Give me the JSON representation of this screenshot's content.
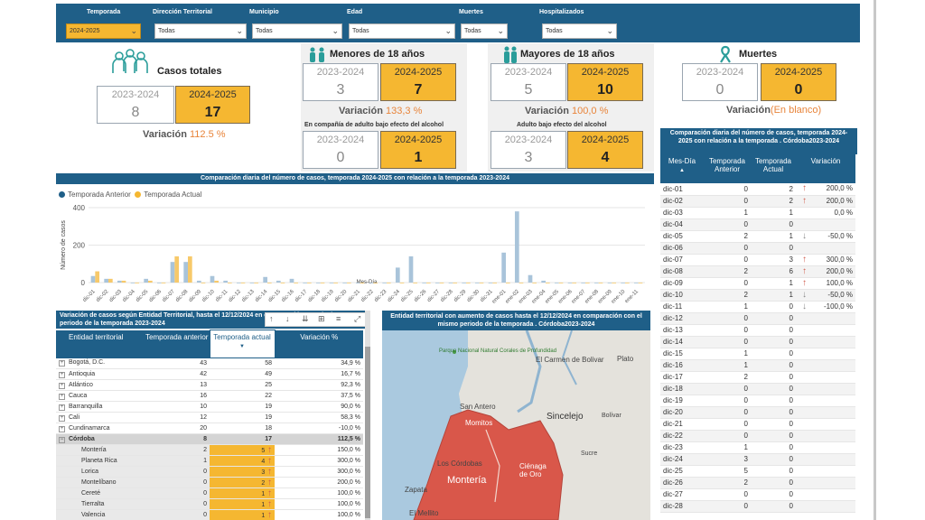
{
  "filters": [
    {
      "label": "Temporada",
      "value": "2024-2025"
    },
    {
      "label": "Dirección Territorial",
      "value": "Todas"
    },
    {
      "label": "Municipio",
      "value": "Todas"
    },
    {
      "label": "Edad",
      "value": "Todas"
    },
    {
      "label": "Muertes",
      "value": "Todas"
    },
    {
      "label": "Hospitalizados",
      "value": "Todas"
    }
  ],
  "kpi": {
    "casos": {
      "title": "Casos totales",
      "prev_label": "2023-2024",
      "prev": "8",
      "cur_label": "2024-2025",
      "cur": "17",
      "var_label": "Variación",
      "var_value": "112.5 %"
    },
    "menores": {
      "title": "Menores de 18 años",
      "prev_label": "2023-2024",
      "prev": "3",
      "cur_label": "2024-2025",
      "cur": "7",
      "var_label": "Variación",
      "var_value": "133,3 %",
      "sub_title": "En compañía de adulto bajo efecto del alcohol",
      "sub_prev_label": "2023-2024",
      "sub_prev": "0",
      "sub_cur_label": "2024-2025",
      "sub_cur": "1"
    },
    "mayores": {
      "title": "Mayores de 18 años",
      "prev_label": "2023-2024",
      "prev": "5",
      "cur_label": "2024-2025",
      "cur": "10",
      "var_label": "Variación",
      "var_value": "100,0 %",
      "sub_title": "Adulto bajo efecto del alcohol",
      "sub_prev_label": "2023-2024",
      "sub_prev": "3",
      "sub_cur_label": "2024-2025",
      "sub_cur": "4"
    },
    "muertes": {
      "title": "Muertes",
      "prev_label": "2023-2024",
      "prev": "0",
      "cur_label": "2024-2025",
      "cur": "0",
      "var_label": "Variación",
      "var_value": "(En blanco)"
    }
  },
  "chart_title": "Comparación diaria del número de casos, temporada 2024-2025 con relación a la temporada 2023-2024",
  "chart_data": {
    "type": "bar",
    "xlabel": "Mes-Día",
    "ylabel": "Número de casos",
    "ylim": [
      0,
      400
    ],
    "yticks": [
      "0",
      "200",
      "400"
    ],
    "series_colors": [
      "#a9c4da",
      "#f7c96a"
    ],
    "categories": [
      "dic-01",
      "dic-02",
      "dic-03",
      "dic-04",
      "dic-05",
      "dic-06",
      "dic-07",
      "dic-08",
      "dic-09",
      "dic-10",
      "dic-11",
      "dic-12",
      "dic-13",
      "dic-14",
      "dic-15",
      "dic-16",
      "dic-17",
      "dic-18",
      "dic-19",
      "dic-20",
      "dic-21",
      "dic-22",
      "dic-23",
      "dic-24",
      "dic-25",
      "dic-26",
      "dic-27",
      "dic-28",
      "dic-29",
      "dic-30",
      "dic-31",
      "ene-01",
      "ene-02",
      "ene-03",
      "ene-04",
      "ene-05",
      "ene-06",
      "ene-07",
      "ene-08",
      "ene-09",
      "ene-10",
      "ene-11"
    ],
    "series": [
      {
        "name": "Temporada Anterior",
        "values": [
          35,
          20,
          10,
          0,
          20,
          0,
          110,
          110,
          10,
          35,
          10,
          0,
          0,
          30,
          10,
          20,
          0,
          0,
          0,
          0,
          0,
          0,
          0,
          80,
          140,
          0,
          0,
          0,
          0,
          0,
          0,
          160,
          380,
          40,
          10,
          0,
          0,
          0,
          0,
          0,
          0,
          0
        ]
      },
      {
        "name": "Temporada Actual",
        "values": [
          60,
          20,
          10,
          0,
          10,
          0,
          140,
          140,
          0,
          10,
          0,
          0,
          0,
          0,
          0,
          0,
          0,
          0,
          0,
          0,
          0,
          0,
          0,
          0,
          0,
          0,
          0,
          0,
          0,
          0,
          0,
          0,
          0,
          0,
          0,
          0,
          0,
          0,
          0,
          0,
          0,
          0
        ]
      }
    ]
  },
  "territorial": {
    "title": "Variación de casos según Entidad Territorial, hasta el 12/12/2024 en comparación con el mismo periodo de la temporada 2023-2024",
    "headers": [
      "Entidad territorial",
      "Temporada anterior",
      "Temporada actual",
      "Variación %"
    ],
    "rows": [
      {
        "name": "Bogotá, D.C.",
        "prev": "43",
        "cur": "58",
        "var": "34,9 %",
        "level": 0,
        "arrow": ""
      },
      {
        "name": "Antioquia",
        "prev": "42",
        "cur": "49",
        "var": "16,7 %",
        "level": 0,
        "arrow": ""
      },
      {
        "name": "Atlántico",
        "prev": "13",
        "cur": "25",
        "var": "92,3 %",
        "level": 0,
        "arrow": ""
      },
      {
        "name": "Cauca",
        "prev": "16",
        "cur": "22",
        "var": "37,5 %",
        "level": 0,
        "arrow": ""
      },
      {
        "name": "Barranquilla",
        "prev": "10",
        "cur": "19",
        "var": "90,0 %",
        "level": 0,
        "arrow": ""
      },
      {
        "name": "Cali",
        "prev": "12",
        "cur": "19",
        "var": "58,3 %",
        "level": 0,
        "arrow": ""
      },
      {
        "name": "Cundinamarca",
        "prev": "20",
        "cur": "18",
        "var": "-10,0 %",
        "level": 0,
        "arrow": ""
      },
      {
        "name": "Córdoba",
        "prev": "8",
        "cur": "17",
        "var": "112,5 %",
        "level": 0,
        "arrow": "",
        "expanded": true
      },
      {
        "name": "Montería",
        "prev": "2",
        "cur": "5",
        "var": "150,0 %",
        "level": 1,
        "arrow": "up"
      },
      {
        "name": "Planeta Rica",
        "prev": "1",
        "cur": "4",
        "var": "300,0 %",
        "level": 1,
        "arrow": "up"
      },
      {
        "name": "Lorica",
        "prev": "0",
        "cur": "3",
        "var": "300,0 %",
        "level": 1,
        "arrow": "up"
      },
      {
        "name": "Montelíbano",
        "prev": "0",
        "cur": "2",
        "var": "200,0 %",
        "level": 1,
        "arrow": "up"
      },
      {
        "name": "Cereté",
        "prev": "0",
        "cur": "1",
        "var": "100,0 %",
        "level": 1,
        "arrow": "up"
      },
      {
        "name": "Tierralta",
        "prev": "0",
        "cur": "1",
        "var": "100,0 %",
        "level": 1,
        "arrow": "up"
      },
      {
        "name": "Valencia",
        "prev": "0",
        "cur": "1",
        "var": "100,0 %",
        "level": 1,
        "arrow": "up"
      }
    ]
  },
  "map": {
    "title": "Entidad territorial con aumento de casos hasta el 12/12/2024 en comparación con el mismo periodo de la temporada . Córdoba2023-2024",
    "labels": [
      "Parque Nacional Natural Corales de Profundidad",
      "El Carmen de Bolivar",
      "Plato",
      "San Antero",
      "Momitos",
      "Sincelejo",
      "Bolívar",
      "Los Córdobas",
      "Ciénaga de Oro",
      "Montería",
      "Sucre",
      "Zapata",
      "El Mellito"
    ]
  },
  "daily_table": {
    "title": "Comparación diaria del número de casos, temporada 2024-2025 con relación a la temporada . Córdoba2023-2024",
    "headers": [
      "Mes-Día",
      "Temporada Anterior",
      "Temporada Actual",
      "Variación"
    ],
    "rows": [
      {
        "d": "dic-01",
        "p": "0",
        "c": "2",
        "v": "200,0 %",
        "a": "up"
      },
      {
        "d": "dic-02",
        "p": "0",
        "c": "2",
        "v": "200,0 %",
        "a": "up"
      },
      {
        "d": "dic-03",
        "p": "1",
        "c": "1",
        "v": "0,0 %",
        "a": ""
      },
      {
        "d": "dic-04",
        "p": "0",
        "c": "0",
        "v": "",
        "a": ""
      },
      {
        "d": "dic-05",
        "p": "2",
        "c": "1",
        "v": "-50,0 %",
        "a": "down"
      },
      {
        "d": "dic-06",
        "p": "0",
        "c": "0",
        "v": "",
        "a": ""
      },
      {
        "d": "dic-07",
        "p": "0",
        "c": "3",
        "v": "300,0 %",
        "a": "up"
      },
      {
        "d": "dic-08",
        "p": "2",
        "c": "6",
        "v": "200,0 %",
        "a": "up"
      },
      {
        "d": "dic-09",
        "p": "0",
        "c": "1",
        "v": "100,0 %",
        "a": "up"
      },
      {
        "d": "dic-10",
        "p": "2",
        "c": "1",
        "v": "-50,0 %",
        "a": "down"
      },
      {
        "d": "dic-11",
        "p": "1",
        "c": "0",
        "v": "-100,0 %",
        "a": "down"
      },
      {
        "d": "dic-12",
        "p": "0",
        "c": "0",
        "v": "",
        "a": ""
      },
      {
        "d": "dic-13",
        "p": "0",
        "c": "0",
        "v": "",
        "a": ""
      },
      {
        "d": "dic-14",
        "p": "0",
        "c": "0",
        "v": "",
        "a": ""
      },
      {
        "d": "dic-15",
        "p": "1",
        "c": "0",
        "v": "",
        "a": ""
      },
      {
        "d": "dic-16",
        "p": "1",
        "c": "0",
        "v": "",
        "a": ""
      },
      {
        "d": "dic-17",
        "p": "2",
        "c": "0",
        "v": "",
        "a": ""
      },
      {
        "d": "dic-18",
        "p": "0",
        "c": "0",
        "v": "",
        "a": ""
      },
      {
        "d": "dic-19",
        "p": "0",
        "c": "0",
        "v": "",
        "a": ""
      },
      {
        "d": "dic-20",
        "p": "0",
        "c": "0",
        "v": "",
        "a": ""
      },
      {
        "d": "dic-21",
        "p": "0",
        "c": "0",
        "v": "",
        "a": ""
      },
      {
        "d": "dic-22",
        "p": "0",
        "c": "0",
        "v": "",
        "a": ""
      },
      {
        "d": "dic-23",
        "p": "1",
        "c": "0",
        "v": "",
        "a": ""
      },
      {
        "d": "dic-24",
        "p": "3",
        "c": "0",
        "v": "",
        "a": ""
      },
      {
        "d": "dic-25",
        "p": "5",
        "c": "0",
        "v": "",
        "a": ""
      },
      {
        "d": "dic-26",
        "p": "2",
        "c": "0",
        "v": "",
        "a": ""
      },
      {
        "d": "dic-27",
        "p": "0",
        "c": "0",
        "v": "",
        "a": ""
      },
      {
        "d": "dic-28",
        "p": "0",
        "c": "0",
        "v": "",
        "a": ""
      }
    ]
  },
  "colors": {
    "header": "#1f5f88",
    "accent": "#f5b731",
    "variation": "#e8843a",
    "up_arrow": "#d05a4a",
    "map_region": "#d9574a"
  }
}
